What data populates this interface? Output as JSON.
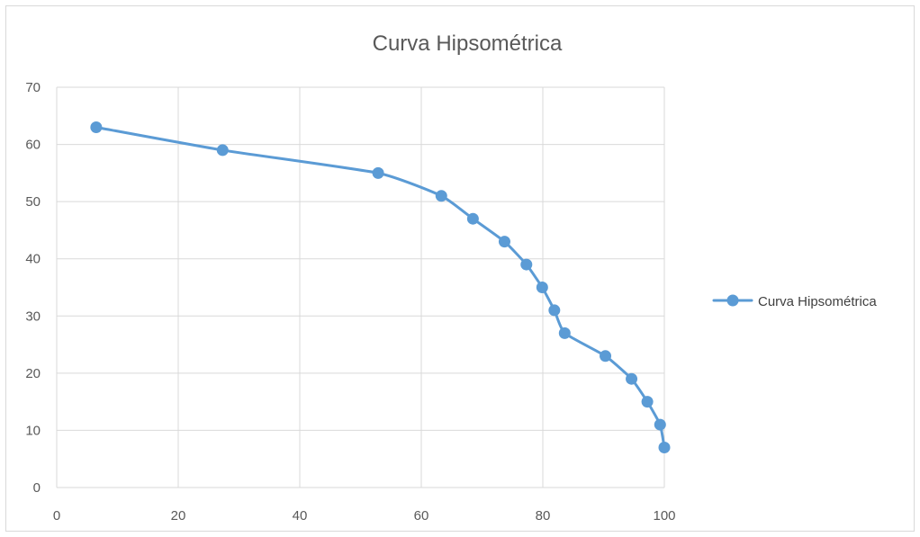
{
  "chart_data": {
    "type": "scatter",
    "title": "Curva Hipsométrica",
    "xlabel": "",
    "ylabel": "",
    "xlim": [
      0,
      100
    ],
    "ylim": [
      0,
      70
    ],
    "xticks": [
      0,
      20,
      40,
      60,
      80,
      100
    ],
    "yticks": [
      0,
      10,
      20,
      30,
      40,
      50,
      60,
      70
    ],
    "grid": true,
    "legend": "right",
    "smooth": true,
    "color": "#5b9bd5",
    "series": [
      {
        "name": "Curva Hipsométrica",
        "x": [
          6.5,
          27.3,
          52.9,
          63.3,
          68.5,
          73.7,
          77.3,
          79.9,
          81.9,
          83.6,
          90.3,
          94.6,
          97.2,
          99.3,
          100
        ],
        "y": [
          63,
          59,
          55,
          51,
          47,
          43,
          39,
          35,
          31,
          27,
          23,
          19,
          15,
          11,
          7
        ]
      }
    ]
  }
}
